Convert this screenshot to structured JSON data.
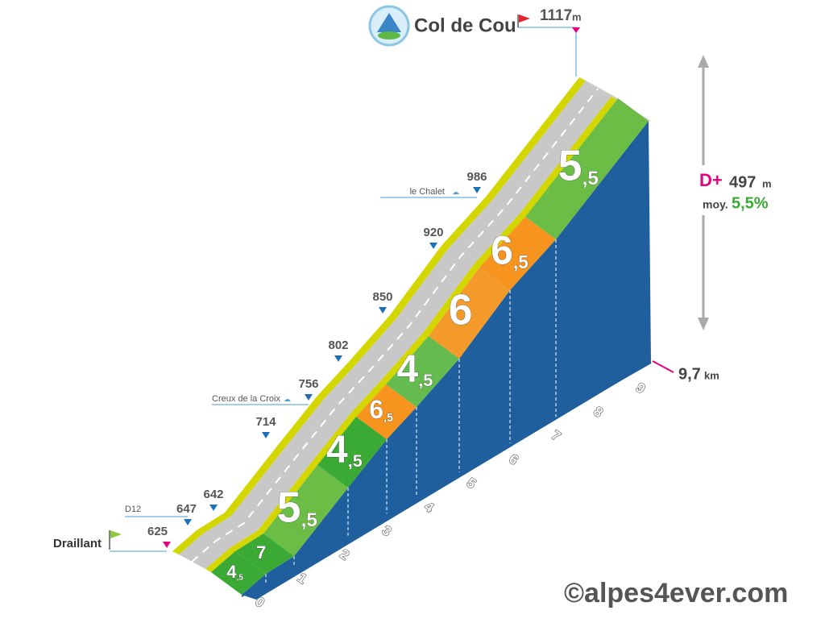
{
  "summit": {
    "name": "Col de Cou",
    "altitude": "1117",
    "unit": "m"
  },
  "start": {
    "name": "Draillant",
    "altitude": "625"
  },
  "markers": [
    {
      "altitude": "642"
    },
    {
      "altitude": "647",
      "place": "D12"
    },
    {
      "altitude": "714"
    },
    {
      "altitude": "756",
      "place": "Creux de la Croix"
    },
    {
      "altitude": "802"
    },
    {
      "altitude": "850"
    },
    {
      "altitude": "920"
    },
    {
      "altitude": "986",
      "place": "le Chalet"
    }
  ],
  "segments": [
    {
      "whole": "4",
      "decimal": ",5",
      "color": "#3aaa35"
    },
    {
      "whole": "7",
      "color": "#3aaa35"
    },
    {
      "whole": "5",
      "decimal": ",5",
      "color": "#6cbd45"
    },
    {
      "whole": "4",
      "decimal": ",5",
      "color": "#3aaa35"
    },
    {
      "whole": "6",
      "decimal": ",5",
      "color": "#f7941d"
    },
    {
      "whole": "4",
      "decimal": ",5",
      "color": "#66bb4f"
    },
    {
      "whole": "6",
      "color": "#f39a2b"
    },
    {
      "whole": "6",
      "decimal": ",5",
      "color": "#f7941d"
    },
    {
      "whole": "5",
      "decimal": ",5",
      "color": "#6cbd45"
    }
  ],
  "km_ticks": [
    "0",
    "1",
    "2",
    "3",
    "4",
    "5",
    "6",
    "7",
    "8",
    "9"
  ],
  "total": {
    "distance": "9,7",
    "unit": "km"
  },
  "stats": {
    "d_plus_label": "D+",
    "d_plus": "497",
    "unit": "m",
    "avg_label": "moy.",
    "avg": "5,5%"
  },
  "copyright": "©alpes4ever.com"
}
